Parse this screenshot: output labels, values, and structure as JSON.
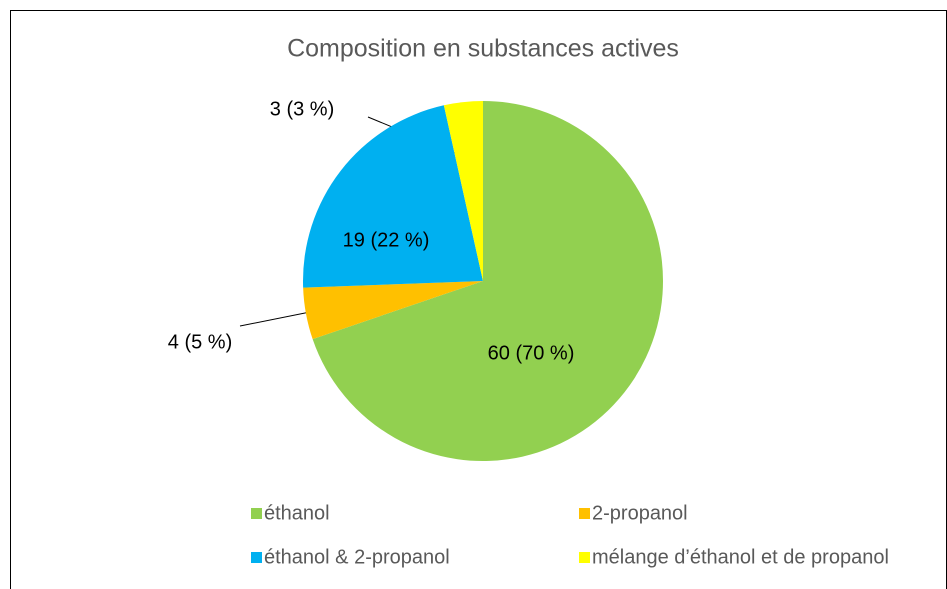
{
  "chart_data": {
    "type": "pie",
    "title": "Composition en substances actives",
    "categories": [
      "éthanol",
      "2-propanol",
      "éthanol & 2-propanol",
      "mélange d’éthanol et de propanol"
    ],
    "values": [
      60,
      4,
      19,
      3
    ],
    "value_labels": [
      "60 (70 %)",
      "4 (5 %)",
      "19 (22 %)",
      "3 (3 %)"
    ],
    "colors": [
      "#92d050",
      "#ffc000",
      "#00b0f0",
      "#ffff00"
    ]
  }
}
